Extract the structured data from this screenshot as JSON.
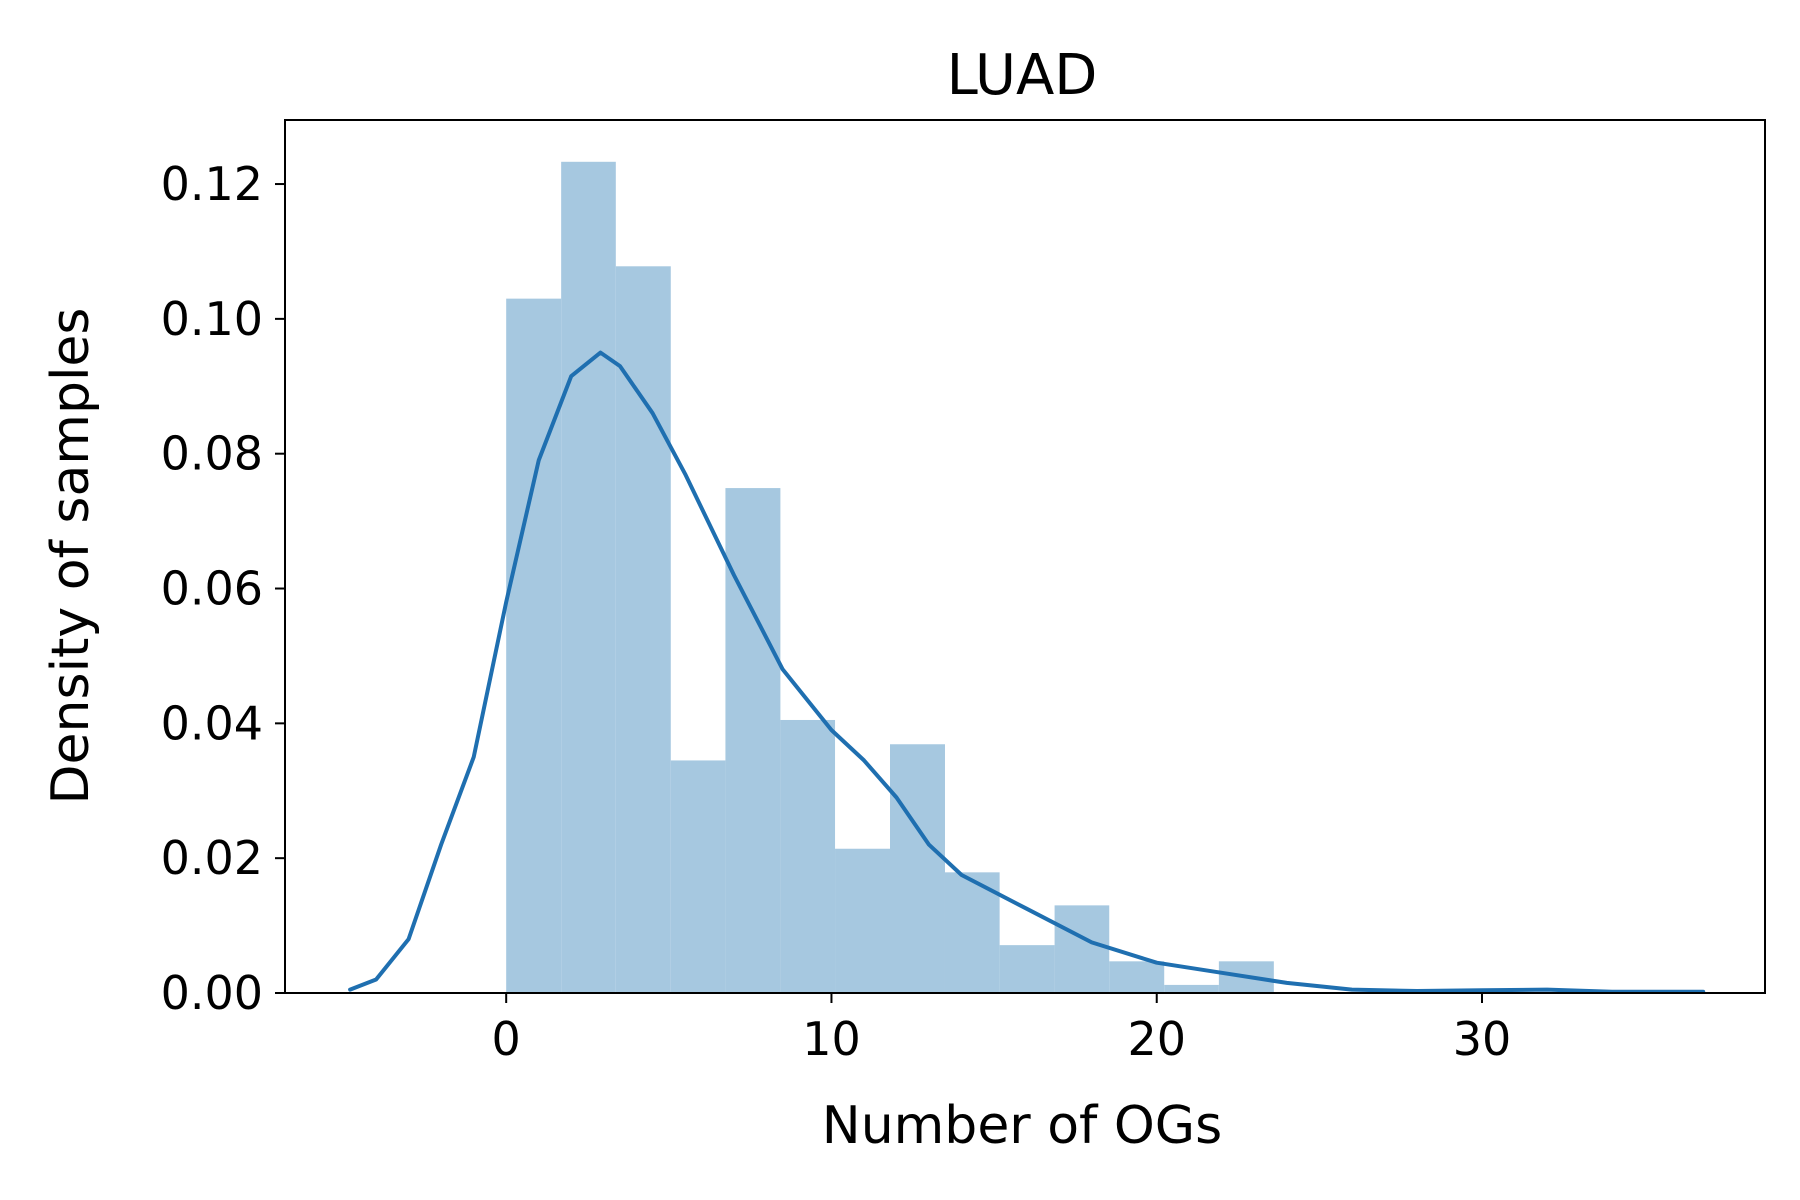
{
  "chart_data": {
    "type": "bar",
    "title": "LUAD",
    "xlabel": "Number of OGs",
    "ylabel": "Density of samples",
    "xlim": [
      -6.8,
      38.7
    ],
    "ylim": [
      0,
      0.1295
    ],
    "xticks": [
      0,
      10,
      20,
      30
    ],
    "yticks": [
      0.0,
      0.02,
      0.04,
      0.06,
      0.08,
      0.1,
      0.12
    ],
    "ytick_labels": [
      "0.00",
      "0.02",
      "0.04",
      "0.06",
      "0.08",
      "0.10",
      "0.12"
    ],
    "grid": false,
    "colors": {
      "bars": "#a6c8e0",
      "kde": "#1f6fb0"
    },
    "histogram": {
      "bin_edges": [
        0,
        1.69,
        3.37,
        5.06,
        6.74,
        8.43,
        10.11,
        11.8,
        13.49,
        15.17,
        16.86,
        18.54,
        20.23,
        21.91,
        23.6,
        25.28,
        26.97,
        28.66,
        30.34,
        32.03,
        33.71
      ],
      "values": [
        0.103,
        0.1233,
        0.1078,
        0.0345,
        0.0749,
        0.0405,
        0.0214,
        0.0369,
        0.0179,
        0.0071,
        0.013,
        0.0047,
        0.0012,
        0.0047,
        0.0,
        0.0,
        0.0,
        0.0005,
        0.0,
        0.0
      ]
    },
    "kde": {
      "name": "density",
      "x": [
        -4.8,
        -4.0,
        -3.0,
        -2.0,
        -1.0,
        0.0,
        1.0,
        2.0,
        2.9,
        3.5,
        4.5,
        5.5,
        7.0,
        8.5,
        10.0,
        11.0,
        12.0,
        13.0,
        14.0,
        16.0,
        18.0,
        20.0,
        22.0,
        24.0,
        26.0,
        28.0,
        30.0,
        32.0,
        34.0,
        36.8
      ],
      "y": [
        0.0005,
        0.002,
        0.008,
        0.022,
        0.035,
        0.058,
        0.079,
        0.0915,
        0.095,
        0.093,
        0.086,
        0.077,
        0.062,
        0.048,
        0.039,
        0.0345,
        0.029,
        0.022,
        0.0175,
        0.0125,
        0.0075,
        0.0045,
        0.003,
        0.0015,
        0.0005,
        0.0003,
        0.0004,
        0.0005,
        0.0002,
        0.0002
      ]
    }
  }
}
